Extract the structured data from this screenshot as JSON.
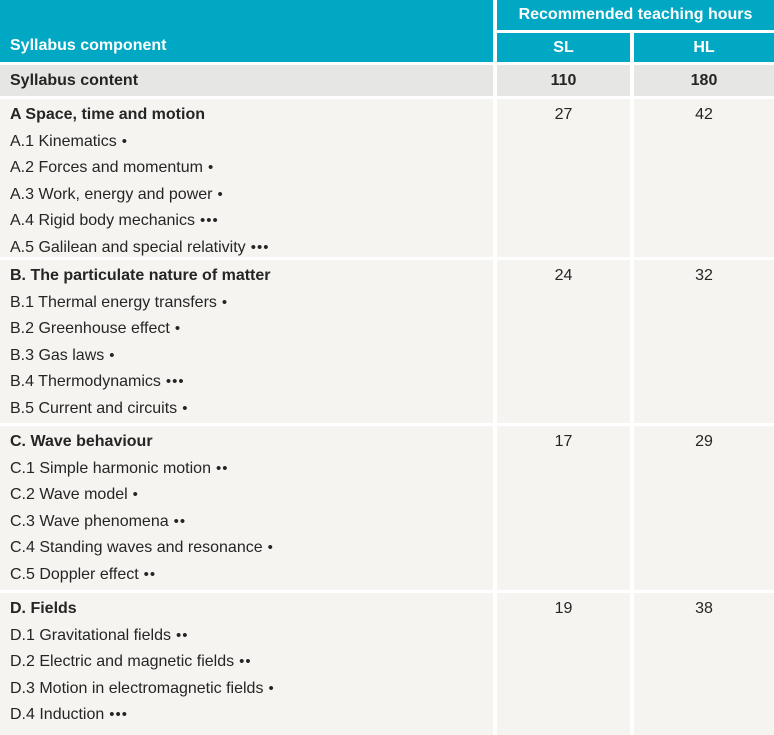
{
  "colors": {
    "teal": "#00a8c4",
    "content_row_bg": "#e6e6e4",
    "section_bg": "#f5f4f1",
    "text_dark": "#252525",
    "header_text": "#ffffff"
  },
  "header": {
    "component_label": "Syllabus component",
    "teaching_hours_label": "Recommended teaching hours",
    "sl_label": "SL",
    "hl_label": "HL"
  },
  "content_row": {
    "label": "Syllabus content",
    "sl": "110",
    "hl": "180"
  },
  "sections": [
    {
      "title": "A Space, time and motion",
      "sl": "27",
      "hl": "42",
      "items": [
        {
          "label": "A.1 Kinematics",
          "dots": "•"
        },
        {
          "label": "A.2 Forces and momentum",
          "dots": "•"
        },
        {
          "label": "A.3 Work, energy and power",
          "dots": "•"
        },
        {
          "label": "A.4 Rigid body mechanics",
          "dots": "•••"
        },
        {
          "label": "A.5 Galilean and special relativity",
          "dots": "•••"
        }
      ]
    },
    {
      "title": "B. The particulate nature of matter",
      "sl": "24",
      "hl": "32",
      "items": [
        {
          "label": "B.1 Thermal energy transfers",
          "dots": "•"
        },
        {
          "label": "B.2 Greenhouse effect",
          "dots": "•"
        },
        {
          "label": "B.3 Gas laws",
          "dots": "•"
        },
        {
          "label": "B.4 Thermodynamics",
          "dots": "•••"
        },
        {
          "label": "B.5 Current and circuits",
          "dots": "•"
        }
      ]
    },
    {
      "title": "C. Wave behaviour",
      "sl": "17",
      "hl": "29",
      "items": [
        {
          "label": "C.1 Simple harmonic motion",
          "dots": "••"
        },
        {
          "label": "C.2 Wave model",
          "dots": "•"
        },
        {
          "label": "C.3 Wave phenomena",
          "dots": "••"
        },
        {
          "label": "C.4 Standing waves and resonance",
          "dots": "•"
        },
        {
          "label": "C.5 Doppler effect",
          "dots": "••"
        }
      ]
    },
    {
      "title": "D. Fields",
      "sl": "19",
      "hl": "38",
      "items": [
        {
          "label": "D.1 Gravitational fields",
          "dots": "••"
        },
        {
          "label": "D.2 Electric and magnetic fields",
          "dots": "••"
        },
        {
          "label": "D.3 Motion in electromagnetic fields",
          "dots": "•"
        },
        {
          "label": "D.4 Induction",
          "dots": "•••"
        }
      ]
    }
  ]
}
